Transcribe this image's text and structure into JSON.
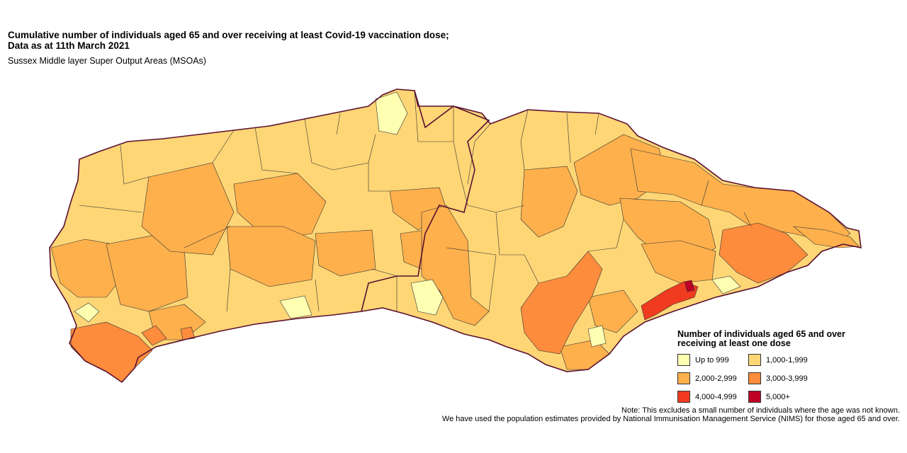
{
  "title_line1": "Cumulative number of individuals aged 65 and over receiving at least Covid-19 vaccination dose;",
  "title_line2": "Data as at 11th March 2021",
  "subtitle": "Sussex Middle layer Super Output Areas (MSOAs)",
  "legend": {
    "title_line1": "Number of individuals aged 65 and over",
    "title_line2": "receiving at least one dose",
    "items": [
      {
        "label": "Up to 999",
        "color": "#FFFFB2"
      },
      {
        "label": "1,000-1,999",
        "color": "#FED676"
      },
      {
        "label": "2,000-2,999",
        "color": "#FEB04C"
      },
      {
        "label": "3,000-3,999",
        "color": "#FD8C3C"
      },
      {
        "label": "4,000-4,999",
        "color": "#F03B20"
      },
      {
        "label": "5,000+",
        "color": "#BD0026"
      }
    ]
  },
  "notes": [
    "Note: This excludes a small number of individuals where the age was not known.",
    "We have used the population estimates provided by National Immunisation Management Service (NIMS) for those aged 65 and over."
  ],
  "colors": {
    "outline": "#5a1030",
    "border": "#333333"
  }
}
